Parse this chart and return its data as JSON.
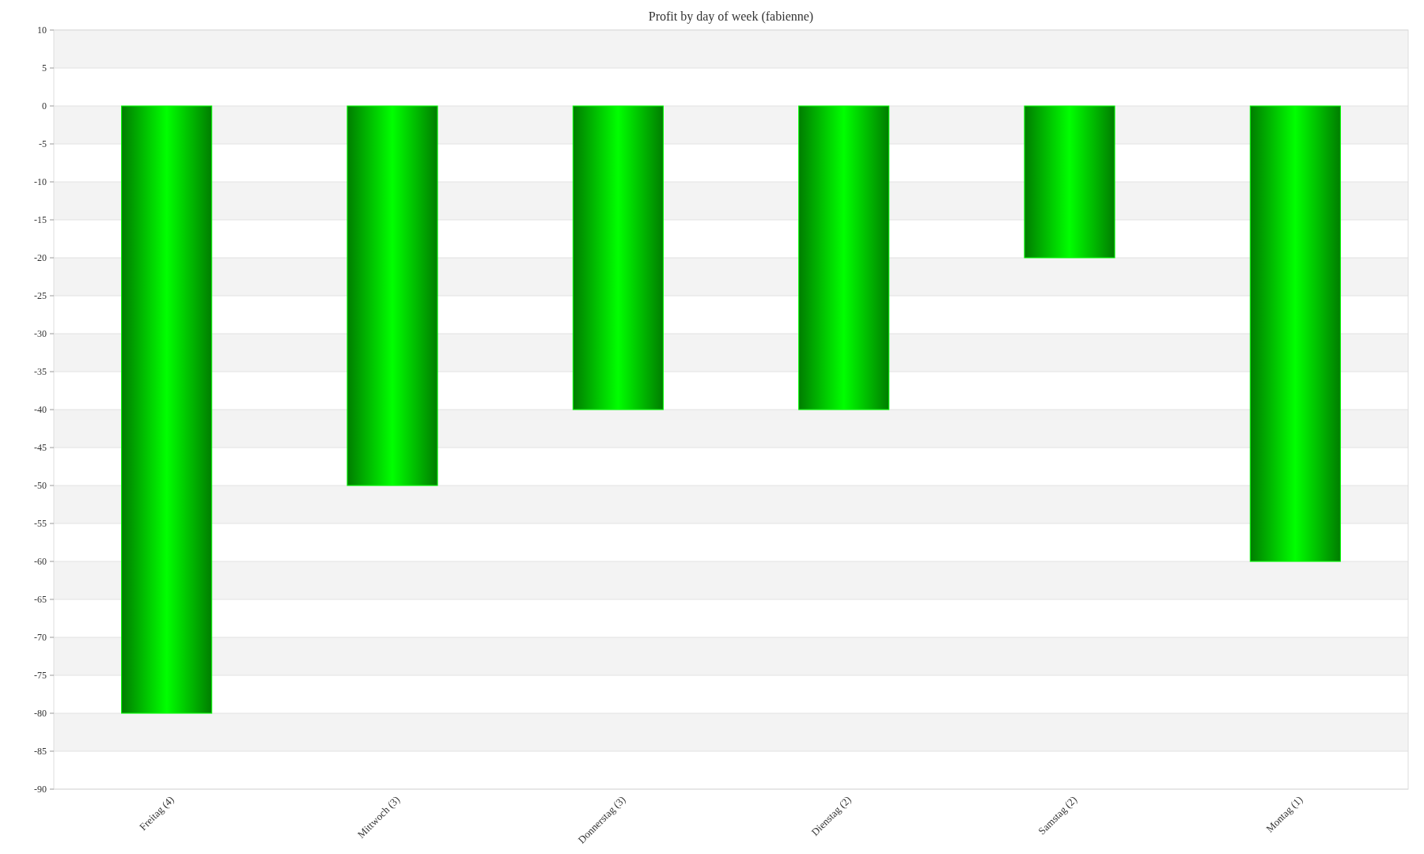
{
  "chart_data": {
    "type": "bar",
    "title": "Profit by day of week  (fabienne)",
    "categories": [
      "Freitag (4)",
      "Mittwoch (3)",
      "Donnerstag (3)",
      "Dienstag (2)",
      "Samstag (2)",
      "Montag (1)"
    ],
    "values": [
      -80,
      -50,
      -40,
      -40,
      -20,
      -60
    ],
    "color": "#00ff00",
    "ylim": [
      -90,
      10
    ],
    "yticks": [
      10,
      5,
      0,
      -5,
      -10,
      -15,
      -20,
      -25,
      -30,
      -35,
      -40,
      -45,
      -50,
      -55,
      -60,
      -65,
      -70,
      -75,
      -80,
      -85,
      -90
    ],
    "grid": "y"
  }
}
